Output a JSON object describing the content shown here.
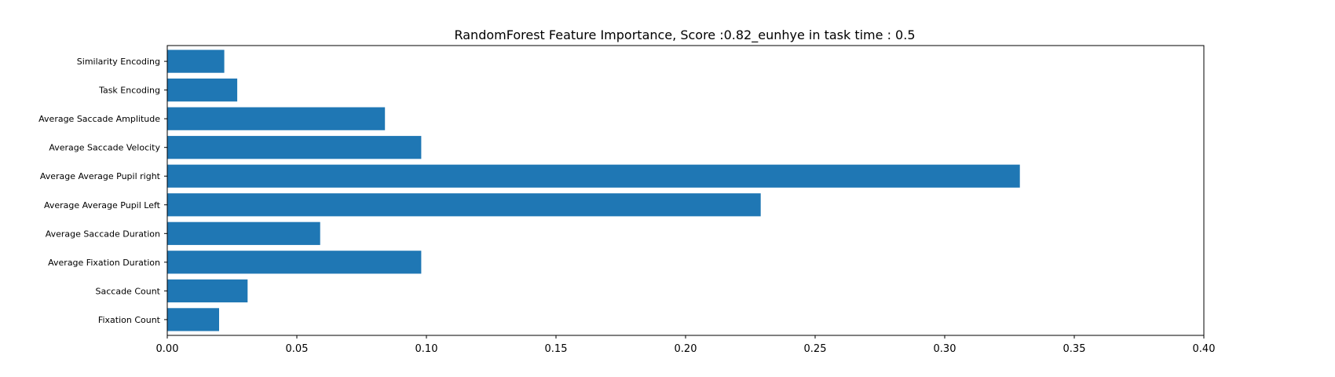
{
  "chart_data": {
    "type": "bar",
    "orientation": "horizontal",
    "title": "RandomForest Feature Importance, Score :0.82_eunhye in task time : 0.5",
    "xlabel": "",
    "ylabel": "",
    "xlim": [
      0.0,
      0.4
    ],
    "xticks": [
      "0.00",
      "0.05",
      "0.10",
      "0.15",
      "0.20",
      "0.25",
      "0.30",
      "0.35",
      "0.40"
    ],
    "grid": false,
    "bar_color": "#1f77b4",
    "categories": [
      "Fixation Count",
      "Saccade Count",
      "Average Fixation Duration",
      "Average Saccade Duration",
      "Average Average Pupil Left",
      "Average Average Pupil right",
      "Average Saccade Velocity",
      "Average Saccade Amplitude",
      "Task Encoding",
      "Similarity Encoding"
    ],
    "values": [
      0.02,
      0.031,
      0.098,
      0.059,
      0.229,
      0.329,
      0.098,
      0.084,
      0.027,
      0.022
    ]
  }
}
